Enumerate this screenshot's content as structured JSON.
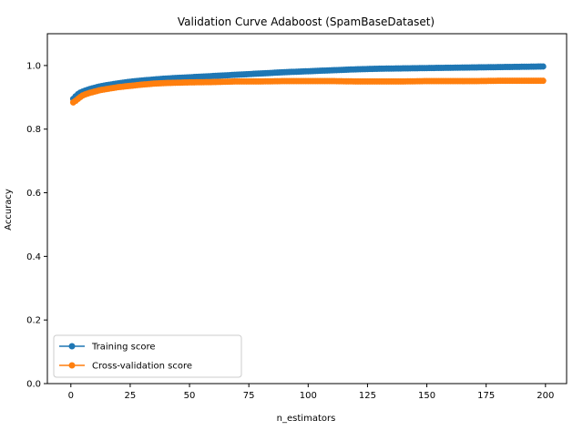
{
  "chart_data": {
    "type": "line",
    "title": "Validation Curve Adaboost (SpamBaseDataset)",
    "xlabel": "n_estimators",
    "ylabel": "Accuracy",
    "xlim": [
      -9.9,
      208.9
    ],
    "ylim": [
      0.0,
      1.1
    ],
    "xticks": [
      0,
      25,
      50,
      75,
      100,
      125,
      150,
      175,
      200
    ],
    "yticks": [
      0.0,
      0.2,
      0.4,
      0.6,
      0.8,
      1.0
    ],
    "x_tick_labels": [
      "0",
      "25",
      "50",
      "75",
      "100",
      "125",
      "150",
      "175",
      "200"
    ],
    "y_tick_labels": [
      "0.0",
      "0.2",
      "0.4",
      "0.6",
      "0.8",
      "1.0"
    ],
    "grid": false,
    "legend": "lower-left",
    "colors": {
      "train": "#1f77b4",
      "cv": "#ff7f0e"
    },
    "series": [
      {
        "name": "Training score",
        "color": "#1f77b4",
        "x": [
          1,
          2,
          3,
          4,
          5,
          6,
          8,
          10,
          12,
          15,
          20,
          25,
          30,
          35,
          40,
          45,
          50,
          60,
          70,
          80,
          90,
          100,
          110,
          120,
          130,
          140,
          150,
          160,
          170,
          180,
          190,
          199
        ],
        "values": [
          0.895,
          0.903,
          0.91,
          0.915,
          0.918,
          0.921,
          0.926,
          0.93,
          0.934,
          0.938,
          0.944,
          0.949,
          0.953,
          0.956,
          0.959,
          0.961,
          0.963,
          0.967,
          0.971,
          0.975,
          0.979,
          0.982,
          0.985,
          0.988,
          0.99,
          0.991,
          0.992,
          0.993,
          0.994,
          0.995,
          0.996,
          0.997
        ]
      },
      {
        "name": "Cross-validation score",
        "color": "#ff7f0e",
        "x": [
          1,
          2,
          3,
          4,
          5,
          6,
          8,
          10,
          12,
          15,
          20,
          25,
          30,
          35,
          40,
          45,
          50,
          60,
          70,
          80,
          90,
          100,
          110,
          120,
          130,
          140,
          150,
          160,
          170,
          180,
          190,
          199
        ],
        "values": [
          0.884,
          0.889,
          0.895,
          0.901,
          0.906,
          0.909,
          0.914,
          0.918,
          0.922,
          0.926,
          0.932,
          0.936,
          0.94,
          0.943,
          0.945,
          0.946,
          0.947,
          0.948,
          0.95,
          0.95,
          0.951,
          0.951,
          0.951,
          0.95,
          0.95,
          0.95,
          0.951,
          0.951,
          0.951,
          0.952,
          0.952,
          0.952
        ]
      }
    ]
  }
}
